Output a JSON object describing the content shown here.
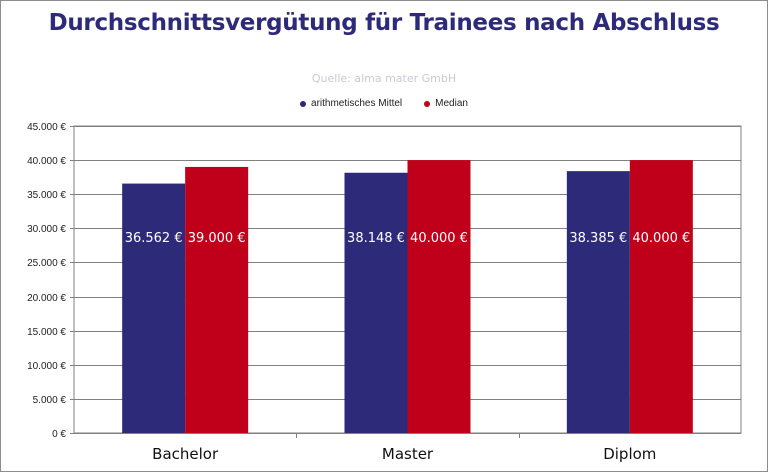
{
  "title": "Durchschnittsvergütung für Trainees nach Abschluss",
  "subtitle": "Quelle: alma mater GmbH",
  "colors": {
    "series1": "#2e2a7a",
    "series2": "#c0001a",
    "title": "#2e2a7a"
  },
  "chart_data": {
    "type": "bar",
    "categories": [
      "Bachelor",
      "Master",
      "Diplom"
    ],
    "series": [
      {
        "name": "arithmetisches Mittel",
        "values": [
          36562,
          38148,
          38385
        ],
        "labels": [
          "36.562 €",
          "38.148 €",
          "38.385 €"
        ]
      },
      {
        "name": "Median",
        "values": [
          39000,
          40000,
          40000
        ],
        "labels": [
          "39.000 €",
          "40.000 €",
          "40.000 €"
        ]
      }
    ],
    "ylim": [
      0,
      45000
    ],
    "yticks": [
      0,
      5000,
      10000,
      15000,
      20000,
      25000,
      30000,
      35000,
      40000,
      45000
    ],
    "ytick_labels": [
      "0 €",
      "5.000 €",
      "10.000 €",
      "15.000 €",
      "20.000 €",
      "25.000 €",
      "30.000 €",
      "35.000 €",
      "40.000 €",
      "45.000 €"
    ],
    "grid": true,
    "legend_position": "top-center"
  }
}
